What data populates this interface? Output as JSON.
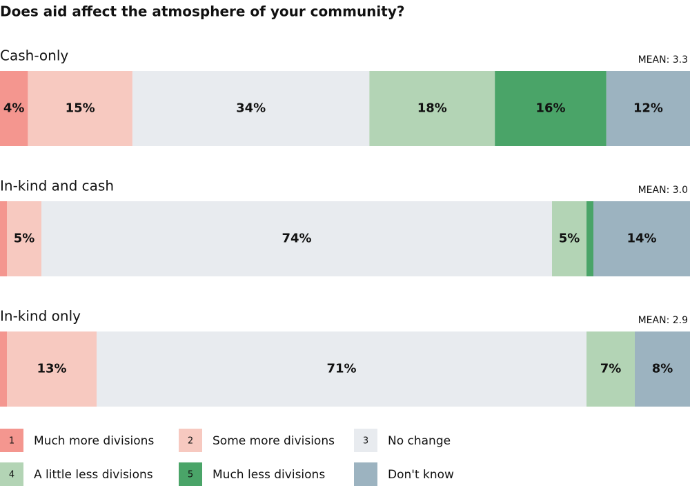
{
  "chart_data": {
    "type": "bar",
    "orientation": "horizontal",
    "stacked": true,
    "title": "Does aid affect the atmosphere of your community?",
    "categories": [
      "Cash-only",
      "In-kind and cash",
      "In-kind only"
    ],
    "mean_labels": [
      "MEAN: 3.3",
      "MEAN: 3.0",
      "MEAN: 2.9"
    ],
    "series": [
      {
        "name": "Much more divisions",
        "code": "1",
        "color": "#f4968f",
        "values": [
          4,
          1,
          1
        ],
        "value_labels": [
          "4%",
          null,
          null
        ]
      },
      {
        "name": "Some more divisions",
        "code": "2",
        "color": "#f7c9c0",
        "values": [
          15,
          5,
          13
        ],
        "value_labels": [
          "15%",
          "5%",
          "13%"
        ]
      },
      {
        "name": "No change",
        "code": "3",
        "color": "#e8ebef",
        "values": [
          34,
          74,
          71
        ],
        "value_labels": [
          "34%",
          "74%",
          "71%"
        ]
      },
      {
        "name": "A little less divisions",
        "code": "4",
        "color": "#b3d4b5",
        "values": [
          18,
          5,
          7
        ],
        "value_labels": [
          "18%",
          "5%",
          "7%"
        ]
      },
      {
        "name": "Much less divisions",
        "code": "5",
        "color": "#4aa468",
        "values": [
          16,
          1,
          0
        ],
        "value_labels": [
          "16%",
          null,
          null
        ]
      },
      {
        "name": "Don't know",
        "color": "#9cb3c0",
        "values": [
          12,
          14,
          8
        ],
        "value_labels": [
          "12%",
          "14%",
          "8%"
        ]
      }
    ]
  }
}
